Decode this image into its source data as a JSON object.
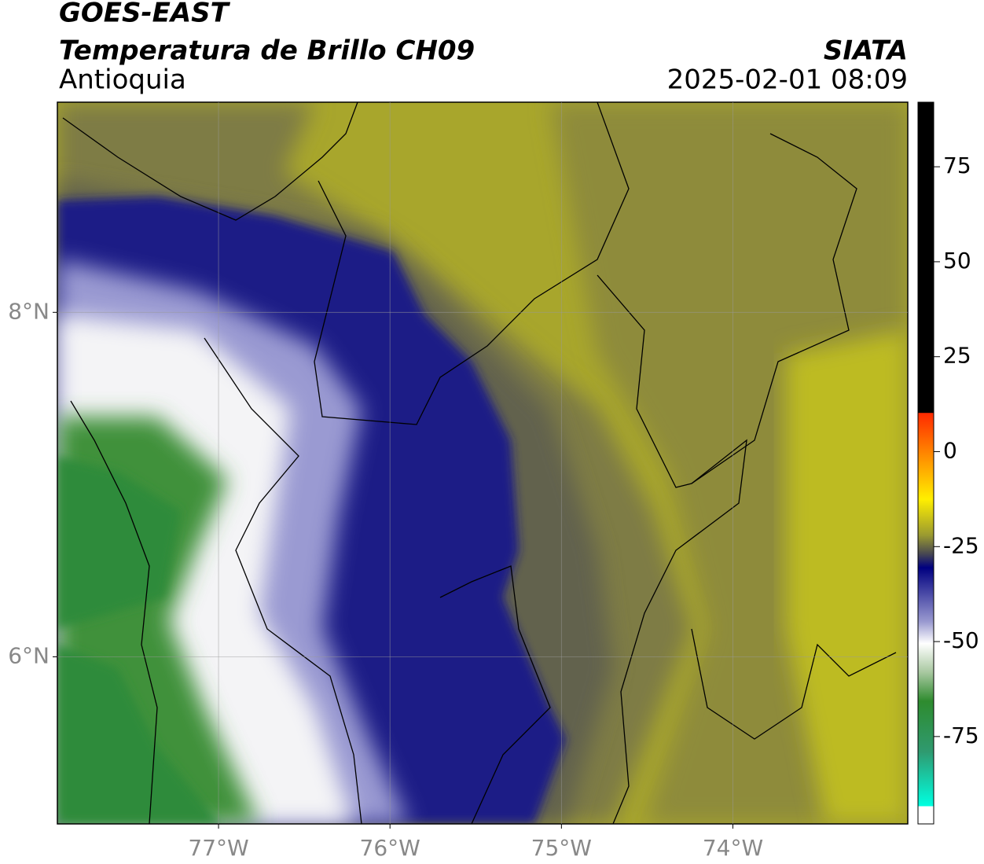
{
  "map": {
    "title": "GOES-EAST",
    "subtitle": "Temperatura de Brillo CH09",
    "region": "Antioquia",
    "source": "SIATA",
    "datetime": "2025-02-01 08:09",
    "xlim": [
      -77.94,
      -72.98
    ],
    "ylim": [
      5.03,
      9.22
    ],
    "xticks": [
      {
        "value": -77,
        "label": "77°W"
      },
      {
        "value": -76,
        "label": "76°W"
      },
      {
        "value": -75,
        "label": "75°W"
      },
      {
        "value": -74,
        "label": "74°W"
      }
    ],
    "yticks": [
      {
        "value": 8,
        "label": "8°N"
      },
      {
        "value": 6,
        "label": "6°N"
      }
    ],
    "grid": true,
    "colorbar": {
      "lim": [
        -98,
        92
      ],
      "ticks": [
        75,
        50,
        25,
        0,
        -25,
        -50,
        -75
      ]
    }
  }
}
